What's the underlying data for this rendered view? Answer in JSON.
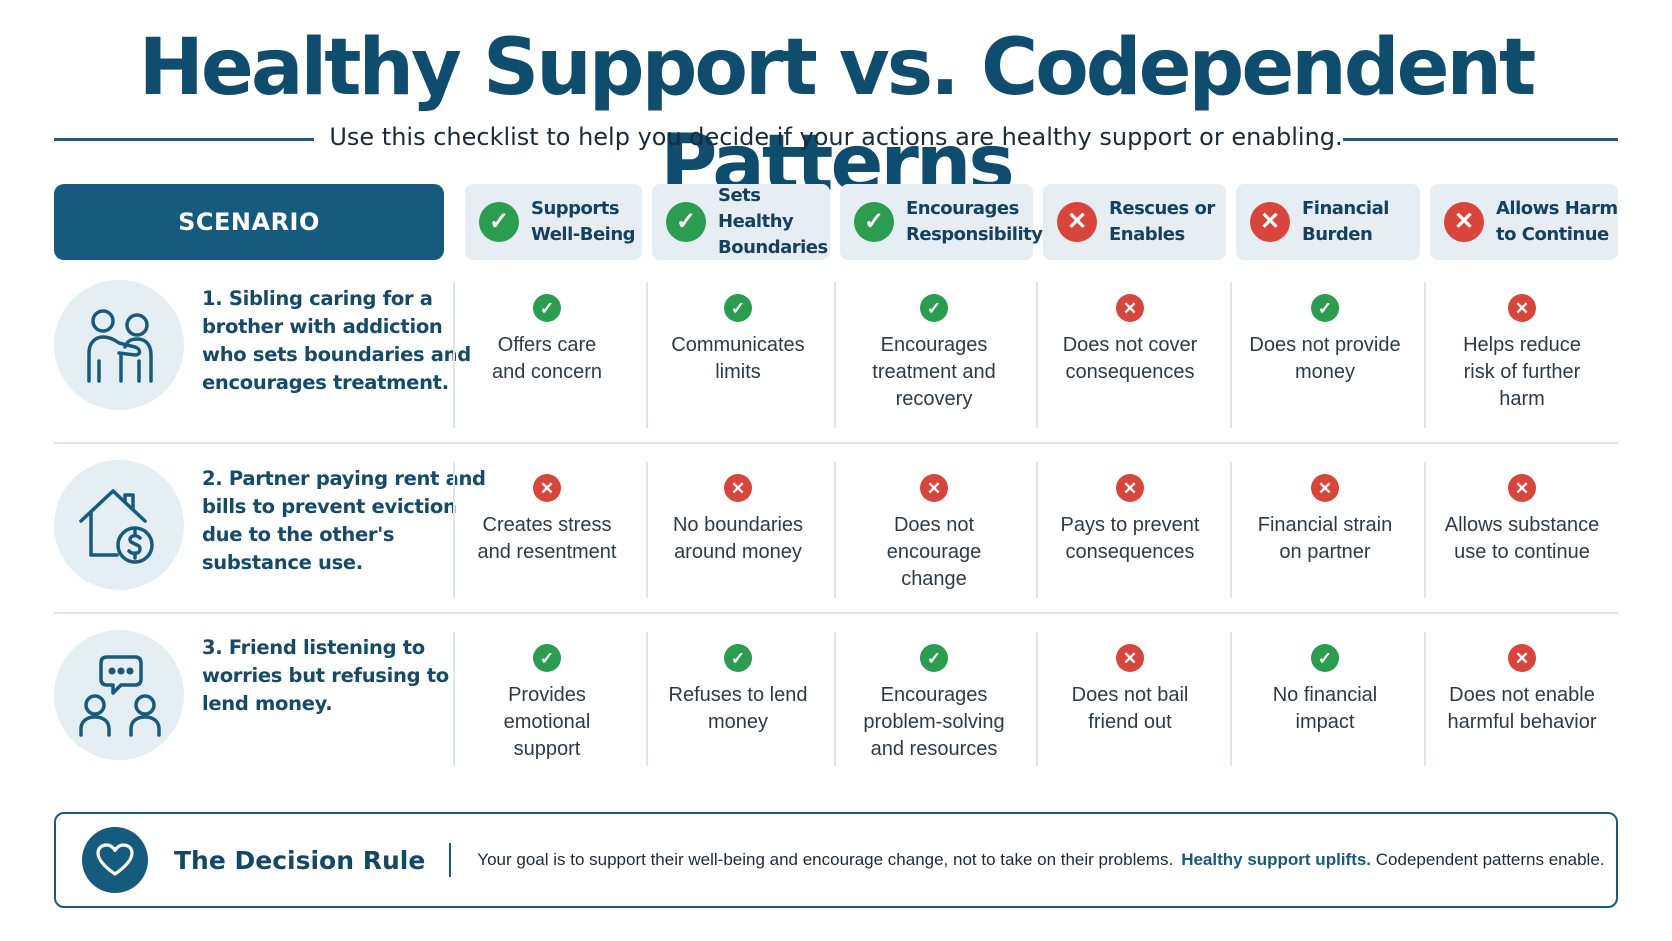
{
  "title": "Healthy Support vs. Codependent Patterns",
  "subtitle": "Use this checklist to help you decide if your actions are healthy support or enabling.",
  "colors": {
    "primary": "#165b7d",
    "good": "#2a9d4e",
    "bad": "#d9453b",
    "header_bg": "#e7eef3"
  },
  "scenario_header": "SCENARIO",
  "columns": [
    {
      "label": "Supports\nWell-Being",
      "status": "good",
      "icon": "check-icon"
    },
    {
      "label": "Sets Healthy\nBoundaries",
      "status": "good",
      "icon": "check-icon"
    },
    {
      "label": "Encourages\nResponsibility",
      "status": "good",
      "icon": "check-icon"
    },
    {
      "label": "Rescues or\nEnables",
      "status": "bad",
      "icon": "x-icon"
    },
    {
      "label": "Financial\nBurden",
      "status": "bad",
      "icon": "x-icon"
    },
    {
      "label": "Allows Harm\nto Continue",
      "status": "bad",
      "icon": "x-icon"
    }
  ],
  "rows": [
    {
      "icon": "people-support-icon",
      "scenario": "1. Sibling caring for a brother with addiction who sets boundaries and encourages treatment.",
      "cells": [
        {
          "status": "good",
          "text": "Offers care\nand concern"
        },
        {
          "status": "good",
          "text": "Communicates\nlimits"
        },
        {
          "status": "good",
          "text": "Encourages\ntreatment and\nrecovery"
        },
        {
          "status": "bad",
          "text": "Does not cover\nconsequences"
        },
        {
          "status": "good",
          "text": "Does not provide\nmoney"
        },
        {
          "status": "bad",
          "text": "Helps reduce\nrisk of further\nharm"
        }
      ]
    },
    {
      "icon": "house-dollar-icon",
      "scenario": "2. Partner paying rent and bills to prevent eviction due to the other's substance use.",
      "cells": [
        {
          "status": "bad",
          "text": "Creates stress\nand resentment"
        },
        {
          "status": "bad",
          "text": "No boundaries\naround money"
        },
        {
          "status": "bad",
          "text": "Does not\nencourage\nchange"
        },
        {
          "status": "bad",
          "text": "Pays to prevent\nconsequences"
        },
        {
          "status": "bad",
          "text": "Financial strain\non partner"
        },
        {
          "status": "bad",
          "text": "Allows substance\nuse to continue"
        }
      ]
    },
    {
      "icon": "friends-chat-icon",
      "scenario": "3. Friend listening to worries but refusing to lend money.",
      "cells": [
        {
          "status": "good",
          "text": "Provides\nemotional\nsupport"
        },
        {
          "status": "good",
          "text": "Refuses to lend\nmoney"
        },
        {
          "status": "good",
          "text": "Encourages\nproblem-solving\nand resources"
        },
        {
          "status": "bad",
          "text": "Does not bail\nfriend out"
        },
        {
          "status": "good",
          "text": "No financial\nimpact"
        },
        {
          "status": "bad",
          "text": "Does not enable\nharmful behavior"
        }
      ]
    }
  ],
  "decision_rule": {
    "icon": "heart-icon",
    "title": "The Decision Rule",
    "text": "Your goal is to support their well-being and encourage change, not to take on their problems.",
    "highlight": "Healthy support uplifts.",
    "tail": "Codependent patterns enable."
  }
}
